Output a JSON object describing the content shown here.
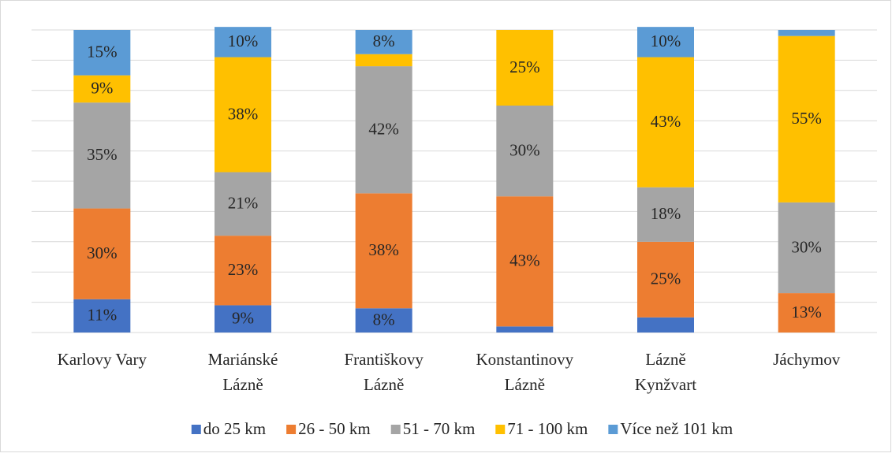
{
  "chart_data": {
    "type": "stacked_bar",
    "categories": [
      "Karlovy Vary",
      "Mariánské Lázně",
      "Františkovy Lázně",
      "Konstantinovy Lázně",
      "Lázně Kynžvart",
      "Jáchymov"
    ],
    "series": [
      {
        "name": "do 25 km",
        "color": "#4472c4",
        "values": [
          11,
          9,
          8,
          2,
          5,
          0
        ],
        "value_labels": [
          "11%",
          "9%",
          "8%",
          null,
          null,
          null
        ]
      },
      {
        "name": "26 - 50 km",
        "color": "#ed7d31",
        "values": [
          30,
          23,
          38,
          43,
          25,
          13
        ],
        "value_labels": [
          "30%",
          "23%",
          "38%",
          "43%",
          "25%",
          "13%"
        ]
      },
      {
        "name": "51 - 70 km",
        "color": "#a5a5a5",
        "values": [
          35,
          21,
          42,
          30,
          18,
          30
        ],
        "value_labels": [
          "35%",
          "21%",
          "42%",
          "30%",
          "18%",
          "30%"
        ]
      },
      {
        "name": "71 - 100 km",
        "color": "#ffc000",
        "values": [
          9,
          38,
          4,
          25,
          43,
          55
        ],
        "value_labels": [
          "9%",
          "38%",
          null,
          "25%",
          "43%",
          "55%"
        ]
      },
      {
        "name": "Více než 101 km",
        "color": "#5b9bd5",
        "values": [
          15,
          10,
          8,
          0,
          10,
          2
        ],
        "value_labels": [
          "15%",
          "10%",
          "8%",
          null,
          "10%",
          null
        ]
      }
    ],
    "ylim": [
      0,
      100
    ],
    "yticks": [
      0,
      10,
      20,
      30,
      40,
      50,
      60,
      70,
      80,
      90,
      100
    ],
    "grid": true,
    "legend": "bottom"
  }
}
